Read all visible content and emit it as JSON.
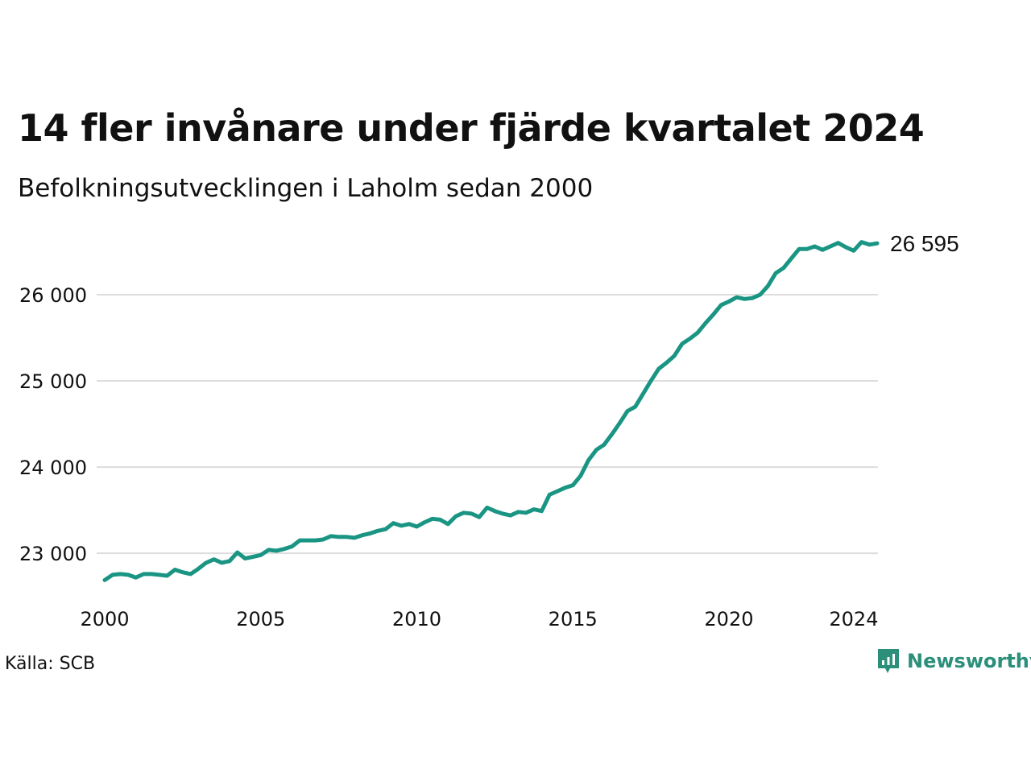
{
  "header": {
    "title": "14 fler invånare under fjärde kvartalet 2024",
    "subtitle": "Befolkningsutvecklingen i Laholm sedan 2000"
  },
  "footer": {
    "source": "Källa: SCB",
    "brand": "Newsworthy",
    "brand_icon": "newsworthy-logo-icon"
  },
  "colors": {
    "line": "#1a9583",
    "grid": "#dddddd",
    "brand": "#2b8f7a"
  },
  "chart_data": {
    "type": "line",
    "title": "14 fler invånare under fjärde kvartalet 2024",
    "subtitle": "Befolkningsutvecklingen i Laholm sedan 2000",
    "xlabel": "",
    "ylabel": "",
    "xlim": [
      2000.0,
      2024.75
    ],
    "ylim": [
      22600,
      26700
    ],
    "x_ticks": [
      2000,
      2005,
      2010,
      2015,
      2020,
      2024
    ],
    "x_tick_labels": [
      "2000",
      "2005",
      "2010",
      "2015",
      "2020",
      "2024"
    ],
    "y_ticks": [
      23000,
      24000,
      25000,
      26000
    ],
    "y_tick_labels": [
      "23 000",
      "24 000",
      "25 000",
      "26 000"
    ],
    "grid": "horizontal",
    "end_label": "26 595",
    "series": [
      {
        "x_start": 2000.0,
        "x_step": 0.25,
        "values": [
          22690,
          22750,
          22760,
          22750,
          22720,
          22760,
          22760,
          22750,
          22740,
          22810,
          22780,
          22760,
          22820,
          22890,
          22930,
          22890,
          22910,
          23010,
          22940,
          22960,
          22980,
          23040,
          23030,
          23050,
          23080,
          23150,
          23150,
          23150,
          23160,
          23200,
          23190,
          23190,
          23180,
          23210,
          23230,
          23260,
          23280,
          23350,
          23320,
          23340,
          23310,
          23360,
          23400,
          23390,
          23340,
          23430,
          23470,
          23460,
          23420,
          23530,
          23490,
          23460,
          23440,
          23480,
          23470,
          23510,
          23490,
          23680,
          23720,
          23760,
          23790,
          23900,
          24080,
          24200,
          24260,
          24380,
          24510,
          24650,
          24700,
          24850,
          25000,
          25140,
          25210,
          25290,
          25430,
          25490,
          25560,
          25670,
          25770,
          25880,
          25920,
          25970,
          25950,
          25960,
          26000,
          26100,
          26250,
          26310,
          26420,
          26530,
          26530,
          26560,
          26520,
          26560,
          26600,
          26550,
          26510,
          26610,
          26580,
          26595
        ]
      }
    ]
  }
}
